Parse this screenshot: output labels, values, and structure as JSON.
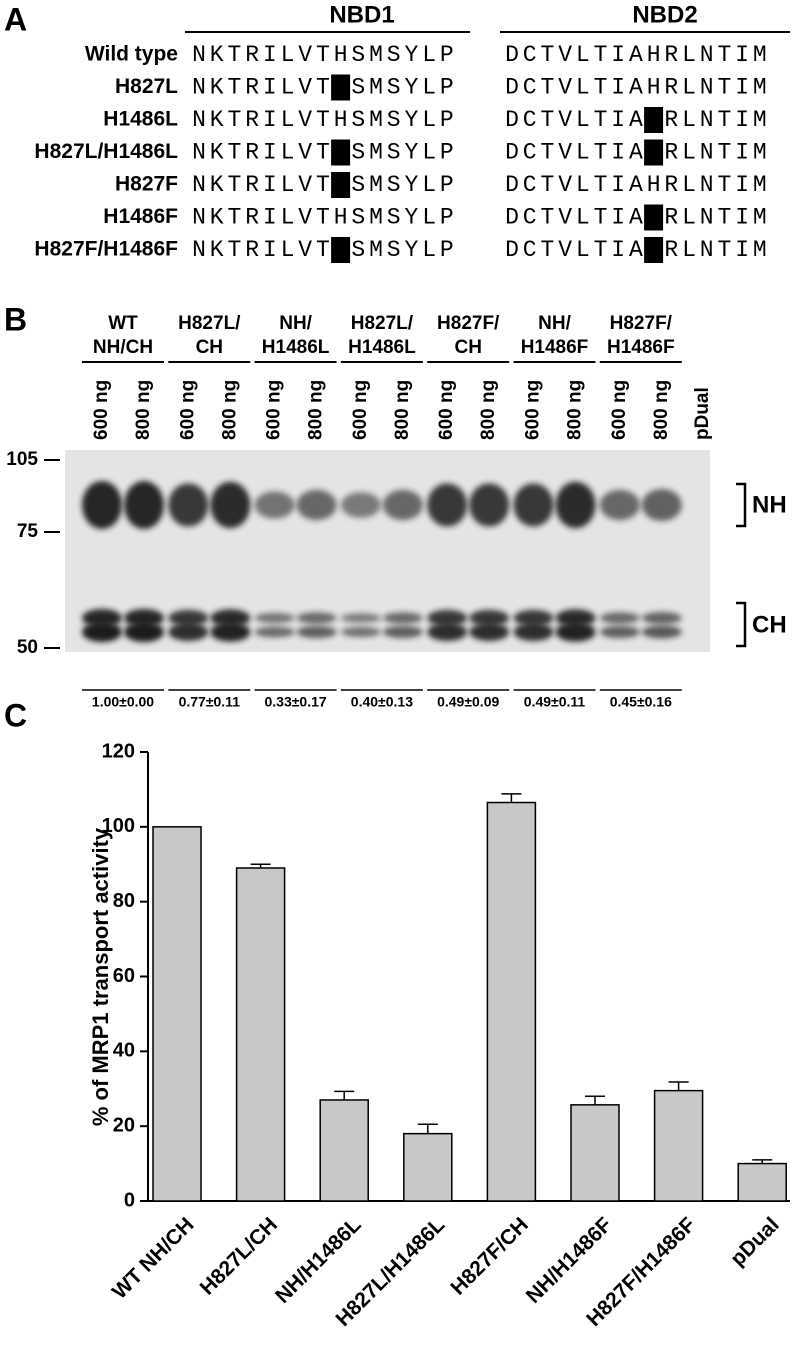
{
  "panel_a": {
    "label": "A",
    "headers": [
      "NBD1",
      "NBD2"
    ],
    "rows": [
      {
        "name": "Wild type",
        "nbd1": "NKTRILVTHSMSYLP",
        "nbd2": "DCTVLTIAHRLNTIM"
      },
      {
        "name": "H827L",
        "nbd1": "NKTRILVTLSMSYLP",
        "nbd2": "DCTVLTIAHRLNTIM"
      },
      {
        "name": "H1486L",
        "nbd1": "NKTRILVTHSMSYLP",
        "nbd2": "DCTVLTIALRLNTIM"
      },
      {
        "name": "H827L/H1486L",
        "nbd1": "NKTRILVTLSMSYLP",
        "nbd2": "DCTVLTIALRLNTIM"
      },
      {
        "name": "H827F",
        "nbd1": "NKTRILVTFSMSYLP",
        "nbd2": "DCTVLTIAHRLNTIM"
      },
      {
        "name": "H1486F",
        "nbd1": "NKTRILVTHSMSYLP",
        "nbd2": "DCTVLTIAFRLNTIM"
      },
      {
        "name": "H827F/H1486F",
        "nbd1": "NKTRILVTFSMSYLP",
        "nbd2": "DCTVLTIAFRLNTIM"
      }
    ]
  },
  "panel_b": {
    "label": "B",
    "lane_labels": [
      "600 ng",
      "800 ng"
    ],
    "control": "pDual",
    "groups": [
      {
        "label": [
          "WT",
          "NH/CH"
        ],
        "quantification": "1.00±0.00"
      },
      {
        "label": [
          "H827L/",
          "CH"
        ],
        "quantification": "0.77±0.11"
      },
      {
        "label": [
          "NH/",
          "H1486L"
        ],
        "quantification": "0.33±0.17"
      },
      {
        "label": [
          "H827L/",
          "H1486L"
        ],
        "quantification": "0.40±0.13"
      },
      {
        "label": [
          "H827F/",
          "CH"
        ],
        "quantification": "0.49±0.09"
      },
      {
        "label": [
          "NH/",
          "H1486F"
        ],
        "quantification": "0.49±0.11"
      },
      {
        "label": [
          "H827F/",
          "H1486F"
        ],
        "quantification": "0.45±0.16"
      }
    ],
    "markers": [
      "105",
      "75",
      "50"
    ],
    "bands": [
      "NH",
      "CH"
    ]
  },
  "chart_data": {
    "type": "bar",
    "label": "C",
    "ylabel": "% of MRP1 transport activity",
    "categories": [
      "WT NH/CH",
      "H827L/CH",
      "NH/H1486L",
      "H827L/H1486L",
      "H827F/CH",
      "NH/H1486F",
      "H827F/H1486F",
      "pDual"
    ],
    "values": [
      100,
      89,
      27,
      18,
      106.5,
      25.7,
      29.5,
      10
    ],
    "errors": [
      0,
      1,
      2.3,
      2.5,
      2.3,
      2.3,
      2.3,
      1
    ],
    "color": "#c8c8c8",
    "ylim": [
      0,
      120
    ],
    "yticks": [
      0,
      20,
      40,
      60,
      80,
      100,
      120
    ]
  }
}
